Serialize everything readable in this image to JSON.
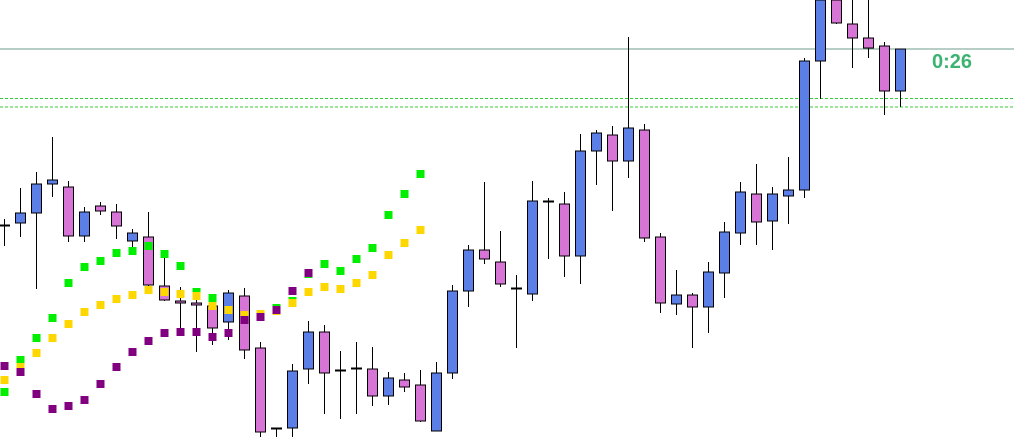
{
  "colors": {
    "background": "#ffffff",
    "bull_body": "#5b7fe6",
    "bear_body": "#d675d6",
    "wick": "#000000",
    "current_price_line": "#6e9e8c",
    "level_line": "#33cc33",
    "timer_text": "#3cb371"
  },
  "timer": {
    "value": "0:26"
  },
  "chart_data": {
    "type": "candlestick",
    "ylim": [
      0,
      437
    ],
    "price_line": 388,
    "levels": [
      338.5,
      330
    ],
    "candles": [
      {
        "x": 4,
        "open": 211,
        "high": 218,
        "low": 191,
        "close": 212
      },
      {
        "x": 20,
        "open": 214,
        "high": 249,
        "low": 200,
        "close": 224
      },
      {
        "x": 36,
        "open": 224,
        "high": 265,
        "low": 148,
        "close": 253
      },
      {
        "x": 52,
        "open": 253,
        "high": 300,
        "low": 240,
        "close": 257
      },
      {
        "x": 68,
        "open": 250,
        "high": 256,
        "low": 195,
        "close": 201
      },
      {
        "x": 84,
        "open": 201,
        "high": 230,
        "low": 195,
        "close": 225
      },
      {
        "x": 100,
        "open": 231,
        "high": 235,
        "low": 222,
        "close": 226
      },
      {
        "x": 116,
        "open": 225,
        "high": 233,
        "low": 198,
        "close": 211
      },
      {
        "x": 132,
        "open": 196,
        "high": 208,
        "low": 182,
        "close": 204
      },
      {
        "x": 148,
        "open": 200,
        "high": 225,
        "low": 150,
        "close": 152
      },
      {
        "x": 164,
        "open": 151,
        "high": 182,
        "low": 136,
        "close": 137
      },
      {
        "x": 180,
        "open": 136,
        "high": 150,
        "low": 106,
        "close": 134
      },
      {
        "x": 196,
        "open": 134,
        "high": 143,
        "low": 85,
        "close": 132
      },
      {
        "x": 212,
        "open": 131,
        "high": 137,
        "low": 92,
        "close": 109
      },
      {
        "x": 228,
        "open": 115,
        "high": 147,
        "low": 97,
        "close": 144
      },
      {
        "x": 244,
        "open": 141,
        "high": 149,
        "low": 78,
        "close": 87
      },
      {
        "x": 260,
        "open": 89,
        "high": 95,
        "low": 0,
        "close": 5
      },
      {
        "x": 276,
        "open": 8,
        "high": 9,
        "low": 0,
        "close": 9
      },
      {
        "x": 292,
        "open": 9,
        "high": 73,
        "low": 0,
        "close": 66
      },
      {
        "x": 308,
        "open": 68,
        "high": 116,
        "low": 53,
        "close": 105
      },
      {
        "x": 324,
        "open": 105,
        "high": 112,
        "low": 23,
        "close": 64
      },
      {
        "x": 340,
        "open": 66,
        "high": 86,
        "low": 18,
        "close": 67
      },
      {
        "x": 356,
        "open": 68,
        "high": 95,
        "low": 23,
        "close": 69
      },
      {
        "x": 372,
        "open": 68,
        "high": 90,
        "low": 31,
        "close": 41
      },
      {
        "x": 388,
        "open": 41,
        "high": 65,
        "low": 32,
        "close": 59
      },
      {
        "x": 404,
        "open": 57,
        "high": 64,
        "low": 45,
        "close": 50
      },
      {
        "x": 420,
        "open": 52,
        "high": 67,
        "low": 15,
        "close": 16
      },
      {
        "x": 436,
        "open": 6,
        "high": 75,
        "low": 6,
        "close": 64
      },
      {
        "x": 452,
        "open": 64,
        "high": 152,
        "low": 58,
        "close": 146
      },
      {
        "x": 468,
        "open": 146,
        "high": 192,
        "low": 130,
        "close": 187
      },
      {
        "x": 484,
        "open": 187,
        "high": 255,
        "low": 173,
        "close": 178
      },
      {
        "x": 500,
        "open": 175,
        "high": 206,
        "low": 150,
        "close": 153
      },
      {
        "x": 516,
        "open": 149,
        "high": 162,
        "low": 89,
        "close": 149
      },
      {
        "x": 532,
        "open": 143,
        "high": 256,
        "low": 136,
        "close": 236
      },
      {
        "x": 548,
        "open": 236,
        "high": 239,
        "low": 178,
        "close": 235
      },
      {
        "x": 564,
        "open": 233,
        "high": 245,
        "low": 160,
        "close": 181
      },
      {
        "x": 580,
        "open": 181,
        "high": 303,
        "low": 153,
        "close": 286
      },
      {
        "x": 596,
        "open": 286,
        "high": 307,
        "low": 252,
        "close": 304
      },
      {
        "x": 612,
        "open": 302,
        "high": 311,
        "low": 226,
        "close": 276
      },
      {
        "x": 628,
        "open": 276,
        "high": 400,
        "low": 259,
        "close": 309
      },
      {
        "x": 644,
        "open": 307,
        "high": 313,
        "low": 195,
        "close": 199
      },
      {
        "x": 660,
        "open": 200,
        "high": 204,
        "low": 124,
        "close": 134
      },
      {
        "x": 676,
        "open": 133,
        "high": 167,
        "low": 122,
        "close": 142
      },
      {
        "x": 692,
        "open": 142,
        "high": 144,
        "low": 89,
        "close": 130
      },
      {
        "x": 708,
        "open": 130,
        "high": 175,
        "low": 104,
        "close": 165
      },
      {
        "x": 724,
        "open": 164,
        "high": 215,
        "low": 139,
        "close": 205
      },
      {
        "x": 740,
        "open": 204,
        "high": 255,
        "low": 192,
        "close": 245
      },
      {
        "x": 756,
        "open": 243,
        "high": 273,
        "low": 192,
        "close": 215
      },
      {
        "x": 772,
        "open": 216,
        "high": 250,
        "low": 187,
        "close": 243
      },
      {
        "x": 788,
        "open": 241,
        "high": 280,
        "low": 213,
        "close": 247
      },
      {
        "x": 804,
        "open": 247,
        "high": 379,
        "low": 239,
        "close": 376
      },
      {
        "x": 820,
        "open": 376,
        "high": 437,
        "low": 338,
        "close": 437
      },
      {
        "x": 836,
        "open": 437,
        "high": 437,
        "low": 413,
        "close": 414
      },
      {
        "x": 852,
        "open": 413,
        "high": 437,
        "low": 369,
        "close": 399
      },
      {
        "x": 868,
        "open": 399,
        "high": 437,
        "low": 379,
        "close": 389
      },
      {
        "x": 884,
        "open": 391,
        "high": 395,
        "low": 322,
        "close": 346
      },
      {
        "x": 900,
        "open": 346,
        "high": 386,
        "low": 330,
        "close": 388
      }
    ],
    "dot_series": [
      {
        "color": "#00ee00",
        "points": [
          [
            4,
            45
          ],
          [
            20,
            77
          ],
          [
            36,
            99
          ],
          [
            52,
            119
          ],
          [
            68,
            154
          ],
          [
            84,
            170
          ],
          [
            100,
            176
          ],
          [
            116,
            184
          ],
          [
            132,
            186
          ],
          [
            148,
            191
          ],
          [
            164,
            183
          ],
          [
            180,
            171
          ],
          [
            196,
            145
          ],
          [
            212,
            139
          ],
          [
            228,
            127
          ],
          [
            244,
            117
          ],
          [
            260,
            122
          ],
          [
            276,
            129
          ],
          [
            292,
            136
          ],
          [
            308,
            163
          ],
          [
            324,
            173
          ],
          [
            340,
            166
          ],
          [
            356,
            178
          ],
          [
            372,
            189
          ],
          [
            388,
            222
          ],
          [
            404,
            243
          ],
          [
            420,
            263
          ]
        ]
      },
      {
        "color": "#ffd700",
        "points": [
          [
            4,
            57
          ],
          [
            20,
            70
          ],
          [
            36,
            84
          ],
          [
            52,
            99
          ],
          [
            68,
            113
          ],
          [
            84,
            125
          ],
          [
            100,
            132
          ],
          [
            116,
            138
          ],
          [
            132,
            142
          ],
          [
            148,
            147
          ],
          [
            164,
            145
          ],
          [
            180,
            143
          ],
          [
            196,
            141
          ],
          [
            212,
            131
          ],
          [
            228,
            127
          ],
          [
            244,
            122
          ],
          [
            260,
            123
          ],
          [
            276,
            126
          ],
          [
            292,
            134
          ],
          [
            308,
            145
          ],
          [
            324,
            150
          ],
          [
            340,
            148
          ],
          [
            356,
            154
          ],
          [
            372,
            162
          ],
          [
            388,
            182
          ],
          [
            404,
            194
          ],
          [
            420,
            207
          ]
        ]
      },
      {
        "color": "#800080",
        "points": [
          [
            4,
            71
          ],
          [
            20,
            65
          ],
          [
            36,
            43
          ],
          [
            52,
            28
          ],
          [
            68,
            31
          ],
          [
            84,
            37
          ],
          [
            100,
            53
          ],
          [
            116,
            70
          ],
          [
            132,
            85
          ],
          [
            148,
            96
          ],
          [
            164,
            104
          ],
          [
            180,
            105
          ],
          [
            196,
            105
          ],
          [
            212,
            100
          ],
          [
            228,
            104
          ],
          [
            244,
            117
          ],
          [
            260,
            120
          ],
          [
            276,
            127
          ],
          [
            292,
            146
          ],
          [
            308,
            164
          ]
        ]
      }
    ]
  }
}
